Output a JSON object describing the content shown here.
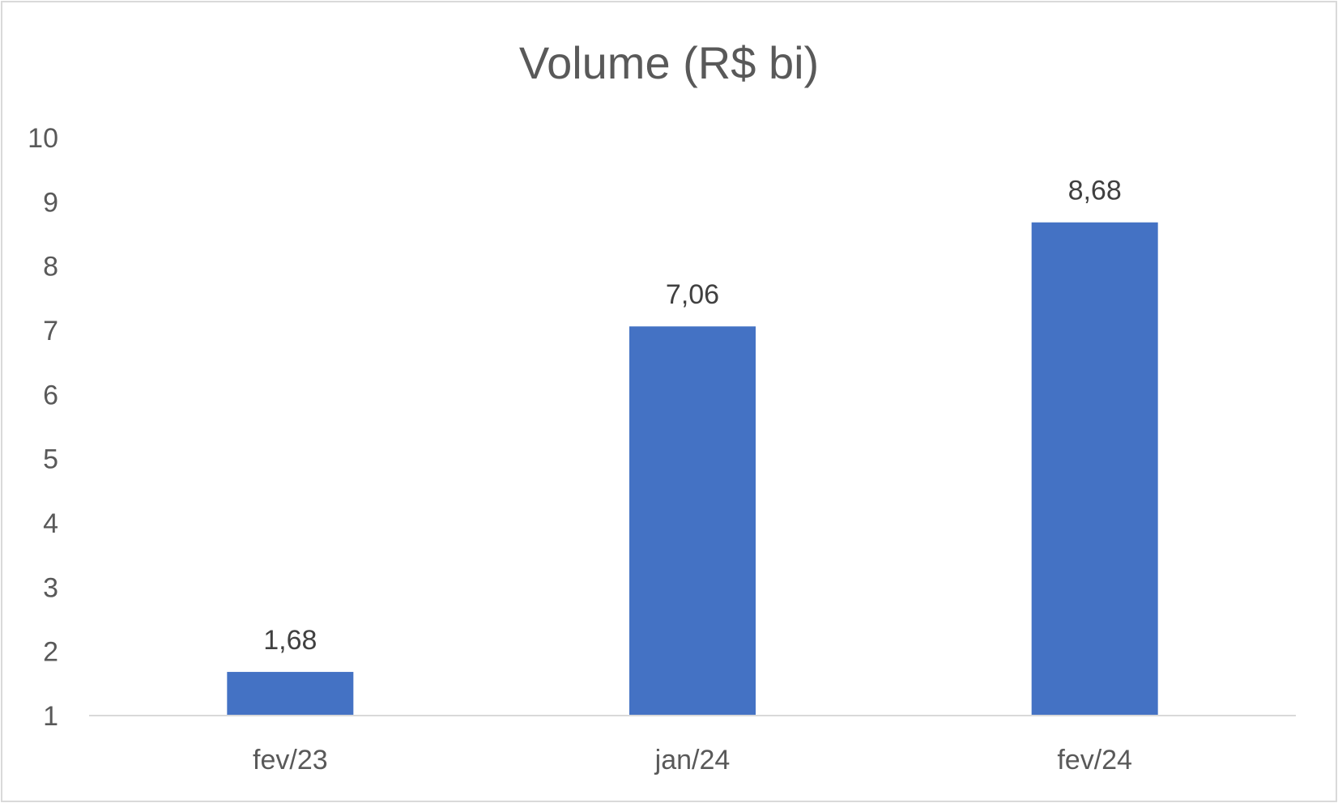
{
  "chart_data": {
    "type": "bar",
    "title": "Volume (R$ bi)",
    "categories": [
      "fev/23",
      "jan/24",
      "fev/24"
    ],
    "values": [
      1.68,
      7.06,
      8.68
    ],
    "data_labels": [
      "1,68",
      "7,06",
      "8,68"
    ],
    "ylim": [
      1,
      10
    ],
    "yticks": [
      1,
      2,
      3,
      4,
      5,
      6,
      7,
      8,
      9,
      10
    ],
    "xlabel": "",
    "ylabel": "",
    "grid": false,
    "legend": "none",
    "bar_color": "#4472c4",
    "axis_color": "#d9d9d9"
  }
}
